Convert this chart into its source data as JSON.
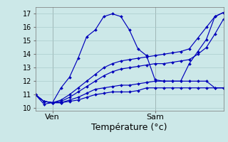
{
  "title": "",
  "xlabel": "Température (°c)",
  "ylabel": "",
  "background_color": "#cce8e8",
  "line_color": "#0000bb",
  "ylim": [
    9.8,
    17.5
  ],
  "xlim": [
    0,
    44
  ],
  "yticks": [
    10,
    11,
    12,
    13,
    14,
    15,
    16,
    17
  ],
  "xtick_positions": [
    4,
    28
  ],
  "xtick_labels": [
    "Ven",
    "Sam"
  ],
  "vlines": [
    4,
    28
  ],
  "series": [
    [
      11.0,
      10.3,
      10.4,
      11.5,
      12.3,
      13.7,
      15.3,
      15.8,
      16.8,
      17.0,
      16.8,
      15.8,
      14.4,
      13.9,
      12.1,
      12.0,
      12.0,
      12.0,
      13.3,
      14.2,
      15.1,
      16.8,
      17.1,
      16.9
    ],
    [
      11.0,
      10.5,
      10.4,
      10.4,
      10.5,
      10.6,
      10.8,
      11.0,
      11.1,
      11.2,
      11.2,
      11.2,
      11.3,
      11.5,
      11.5,
      11.5,
      11.5,
      11.5,
      11.5,
      11.5,
      11.5,
      11.5,
      11.5,
      11.5
    ],
    [
      11.0,
      10.5,
      10.4,
      10.4,
      10.6,
      10.8,
      11.1,
      11.4,
      11.5,
      11.6,
      11.7,
      11.7,
      11.8,
      11.9,
      12.0,
      12.0,
      12.0,
      12.0,
      12.0,
      12.0,
      12.0,
      11.5,
      11.5,
      11.5
    ],
    [
      11.0,
      10.5,
      10.4,
      10.5,
      10.8,
      11.2,
      11.6,
      12.0,
      12.4,
      12.7,
      12.9,
      13.0,
      13.1,
      13.2,
      13.3,
      13.3,
      13.4,
      13.5,
      13.6,
      14.0,
      14.5,
      15.5,
      16.6,
      16.6
    ],
    [
      11.0,
      10.5,
      10.4,
      10.6,
      11.0,
      11.5,
      12.0,
      12.5,
      13.0,
      13.3,
      13.5,
      13.6,
      13.7,
      13.8,
      13.9,
      14.0,
      14.1,
      14.2,
      14.4,
      15.2,
      16.0,
      16.8,
      17.1,
      17.1
    ]
  ],
  "x_values": [
    0,
    2,
    4,
    6,
    8,
    10,
    12,
    14,
    16,
    18,
    20,
    22,
    24,
    26,
    28,
    30,
    32,
    34,
    36,
    38,
    40,
    42,
    44,
    46
  ],
  "xlabel_fontsize": 9,
  "ytick_fontsize": 7,
  "xtick_fontsize": 8,
  "grid_color": "#aacccc",
  "vline_color": "#888888"
}
